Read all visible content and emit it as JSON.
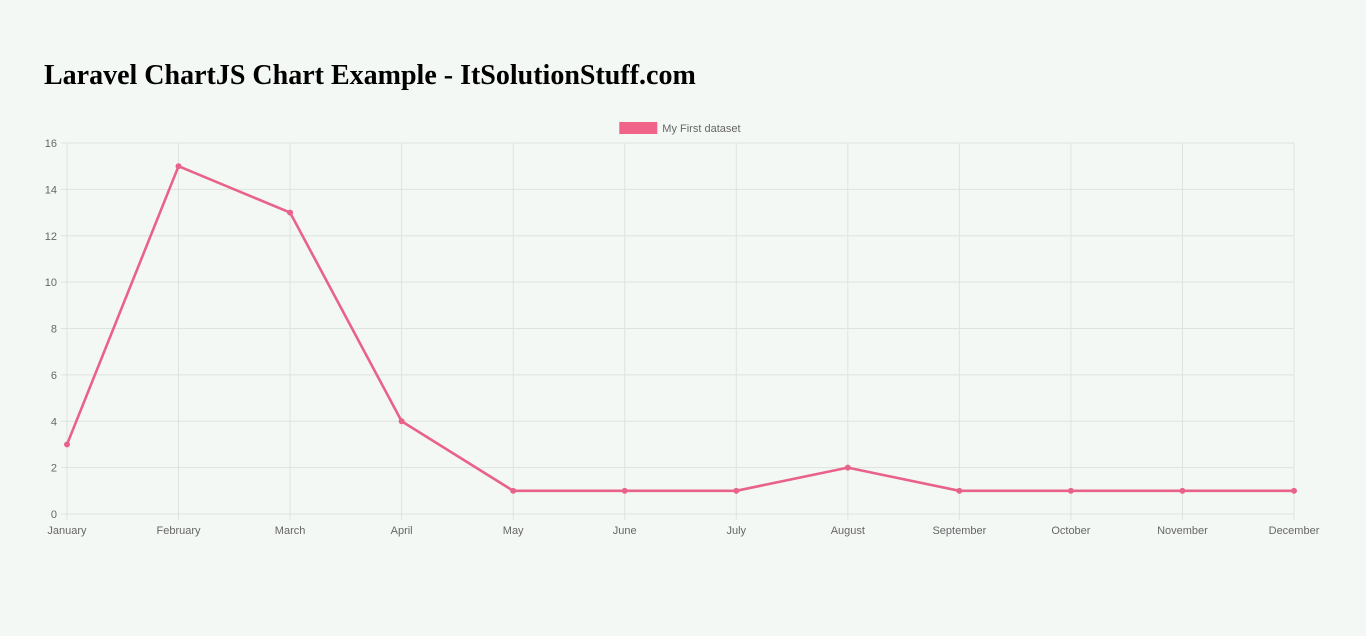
{
  "page": {
    "title": "Laravel ChartJS Chart Example - ItSolutionStuff.com"
  },
  "colors": {
    "background": "#f4f8f5",
    "series": "#e8628a",
    "legend_box": "#f0648a",
    "grid": "#dde3e0",
    "tick_text": "#666666"
  },
  "chart_data": {
    "type": "line",
    "title": "",
    "xlabel": "",
    "ylabel": "",
    "categories": [
      "January",
      "February",
      "March",
      "April",
      "May",
      "June",
      "July",
      "August",
      "September",
      "October",
      "November",
      "December"
    ],
    "series": [
      {
        "name": "My First dataset",
        "values": [
          3,
          15,
          13,
          4,
          1,
          1,
          1,
          2,
          1,
          1,
          1,
          1
        ]
      }
    ],
    "ylim": [
      0,
      16
    ],
    "yticks": [
      0,
      2,
      4,
      6,
      8,
      10,
      12,
      14,
      16
    ],
    "grid": true,
    "legend": "top-center"
  }
}
